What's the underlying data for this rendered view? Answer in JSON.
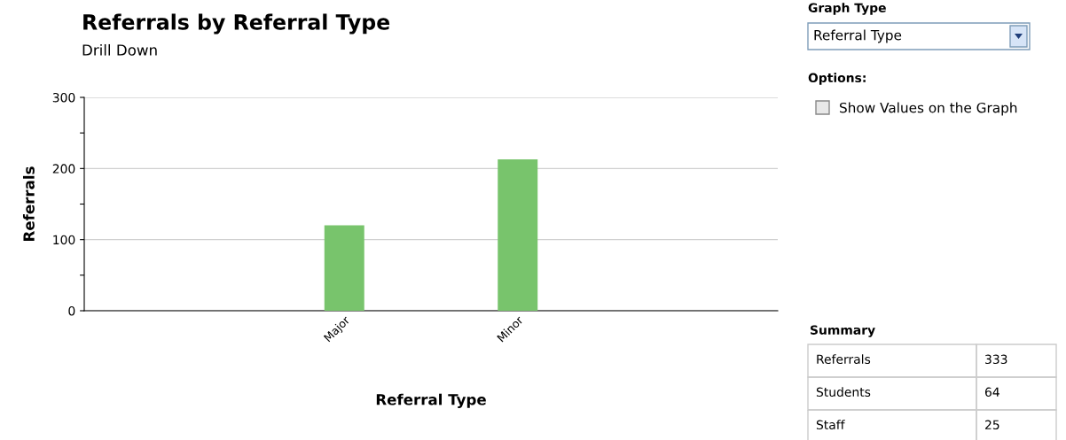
{
  "chart_data": [
    {
      "type": "bar",
      "title": "Referrals by Referral Type",
      "subtitle": "Drill Down",
      "xlabel": "Referral Type",
      "ylabel": "Referrals",
      "categories": [
        "Major",
        "Minor"
      ],
      "values": [
        120,
        213
      ],
      "color": "#78c46c",
      "ylim": [
        0,
        300
      ],
      "yticks": [
        0,
        {
          "value": 50,
          "label": null
        },
        100,
        {
          "value": 150,
          "label": null
        },
        200,
        {
          "value": 250,
          "label": null
        },
        300
      ],
      "grid": "y"
    },
    {
      "type": "other",
      "annotations": [
        "Graph Type",
        "Referral Type",
        "Options:",
        "Show Values on the Graph",
        "Summary",
        "Referrals",
        "333",
        "Students",
        "64",
        "Staff",
        "25"
      ]
    }
  ]
}
